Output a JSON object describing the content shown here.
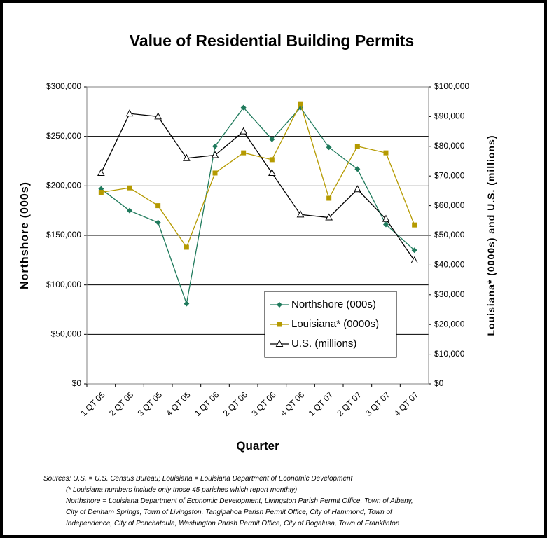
{
  "chart_data": {
    "type": "line",
    "title": "Value of Residential Building Permits",
    "x_label": "Quarter",
    "y_label": "Northshore (000s)",
    "y2_label": "Louisiana* (0000s) and U.S. (millions)",
    "categories": [
      "1 QT 05",
      "2 QT 05",
      "3 QT 05",
      "4 QT 05",
      "1 QT 06",
      "2 QT 06",
      "3 QT 06",
      "4 QT 06",
      "1 QT 07",
      "2 QT 07",
      "3 QT 07",
      "4 QT 07"
    ],
    "series": [
      {
        "name": "Northshore (000s)",
        "color": "#1f7a5c",
        "marker": "diamond",
        "values": [
          197000,
          175000,
          163000,
          81000,
          240000,
          279000,
          247000,
          279000,
          239000,
          217000,
          161000,
          135000
        ]
      },
      {
        "name": "Louisiana* (0000s)",
        "color": "#b59a00",
        "marker": "square",
        "axis": "y2",
        "values": [
          64500,
          66000,
          60000,
          46000,
          71000,
          77800,
          75500,
          94300,
          62500,
          80000,
          77800,
          53500
        ]
      },
      {
        "name": "U.S. (millions)",
        "color": "#000000",
        "marker": "triangle",
        "axis": "y2",
        "values": [
          71000,
          91000,
          90000,
          76000,
          77000,
          85000,
          71000,
          57000,
          56000,
          65500,
          55500,
          41500
        ]
      }
    ],
    "ylim": [
      0,
      300000
    ],
    "yticks": [
      {
        "value": 0,
        "label": "$0"
      },
      {
        "value": 50000,
        "label": "$50,000"
      },
      {
        "value": 100000,
        "label": "$100,000"
      },
      {
        "value": 150000,
        "label": "$150,000"
      },
      {
        "value": 200000,
        "label": "$200,000"
      },
      {
        "value": 250000,
        "label": "$250,000"
      },
      {
        "value": 300000,
        "label": "$300,000"
      }
    ],
    "y2lim": [
      0,
      100000
    ],
    "y2ticks": [
      {
        "value": 0,
        "label": "$0"
      },
      {
        "value": 10000,
        "label": "$10,000"
      },
      {
        "value": 20000,
        "label": "$20,000"
      },
      {
        "value": 30000,
        "label": "$30,000"
      },
      {
        "value": 40000,
        "label": "$40,000"
      },
      {
        "value": 50000,
        "label": "$50,000"
      },
      {
        "value": 60000,
        "label": "$60,000"
      },
      {
        "value": 70000,
        "label": "$70,000"
      },
      {
        "value": 80000,
        "label": "$80,000"
      },
      {
        "value": 90000,
        "label": "$90,000"
      },
      {
        "value": 100000,
        "label": "$100,000"
      }
    ],
    "grid": true,
    "legend": "lower right",
    "notes": [
      "Sources: U.S. = U.S. Census Bureau; Louisiana = Louisiana Department of Economic Development",
      "(* Louisiana numbers include only those 45 parishes which report monthly)",
      "Northshore = Louisiana Department of Economic Development, Livingston Parish Permit Office, Town of Albany,",
      "City of Denham Springs, Town of Livingston, Tangipahoa Parish Permit Office, City of Hammond, Town of",
      "Independence, City of Ponchatoula, Washington Parish Permit Office, City of Bogalusa, Town of Franklinton"
    ]
  }
}
